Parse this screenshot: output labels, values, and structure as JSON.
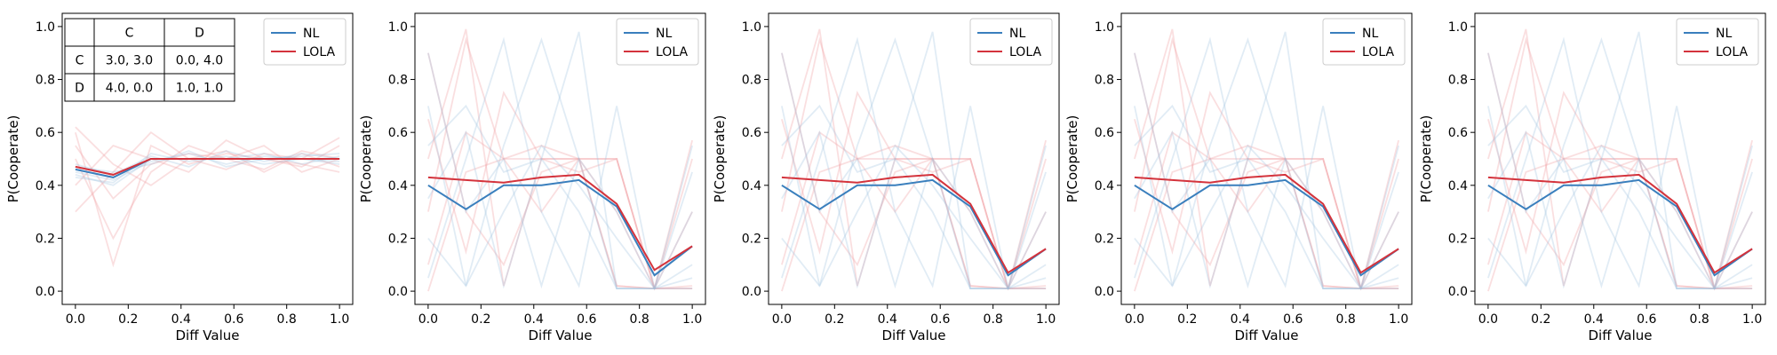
{
  "colors": {
    "nl": "#3a7fbd",
    "lola": "#d4333c",
    "nl_faint": "#9cc0de",
    "lola_faint": "#f2a3a6"
  },
  "chart_data": [
    {
      "type": "line",
      "xlabel": "Diff Value",
      "ylabel": "P(Cooperate)",
      "xlim": [
        -0.05,
        1.05
      ],
      "ylim": [
        -0.05,
        1.05
      ],
      "xticks": [
        "0.0",
        "0.2",
        "0.4",
        "0.6",
        "0.8",
        "1.0"
      ],
      "yticks": [
        "0.0",
        "0.2",
        "0.4",
        "0.6",
        "0.8",
        "1.0"
      ],
      "legend": {
        "placement": "top-right",
        "entries": [
          "NL",
          "LOLA"
        ]
      },
      "x": [
        0.0,
        0.143,
        0.286,
        0.429,
        0.571,
        0.714,
        0.857,
        1.0
      ],
      "series": [
        {
          "name": "NL",
          "values": [
            0.46,
            0.43,
            0.5,
            0.5,
            0.5,
            0.5,
            0.5,
            0.5
          ]
        },
        {
          "name": "LOLA",
          "values": [
            0.47,
            0.44,
            0.5,
            0.5,
            0.5,
            0.5,
            0.5,
            0.5
          ]
        }
      ],
      "faint_runs": {
        "nl": [
          [
            0.45,
            0.42,
            0.49,
            0.52,
            0.48,
            0.51,
            0.5,
            0.49
          ],
          [
            0.48,
            0.44,
            0.51,
            0.47,
            0.53,
            0.49,
            0.52,
            0.5
          ],
          [
            0.44,
            0.4,
            0.5,
            0.5,
            0.5,
            0.52,
            0.48,
            0.51
          ],
          [
            0.47,
            0.45,
            0.48,
            0.53,
            0.47,
            0.5,
            0.51,
            0.52
          ],
          [
            0.43,
            0.41,
            0.52,
            0.49,
            0.51,
            0.48,
            0.5,
            0.48
          ]
        ],
        "lola": [
          [
            0.6,
            0.1,
            0.55,
            0.48,
            0.52,
            0.5,
            0.47,
            0.55
          ],
          [
            0.5,
            0.2,
            0.45,
            0.55,
            0.5,
            0.46,
            0.53,
            0.5
          ],
          [
            0.4,
            0.55,
            0.5,
            0.45,
            0.57,
            0.5,
            0.48,
            0.45
          ],
          [
            0.3,
            0.45,
            0.6,
            0.5,
            0.46,
            0.52,
            0.5,
            0.58
          ],
          [
            0.55,
            0.35,
            0.48,
            0.52,
            0.5,
            0.55,
            0.45,
            0.5
          ],
          [
            0.62,
            0.48,
            0.4,
            0.5,
            0.53,
            0.45,
            0.52,
            0.47
          ]
        ]
      },
      "payoff_table": {
        "header": [
          "",
          "C",
          "D"
        ],
        "rows": [
          [
            "C",
            "3.0, 3.0",
            "0.0, 4.0"
          ],
          [
            "D",
            "4.0, 0.0",
            "1.0, 1.0"
          ]
        ]
      }
    },
    {
      "type": "line",
      "xlabel": "Diff Value",
      "ylabel": "P(Cooperate)",
      "xlim": [
        -0.05,
        1.05
      ],
      "ylim": [
        -0.05,
        1.05
      ],
      "xticks": [
        "0.0",
        "0.2",
        "0.4",
        "0.6",
        "0.8",
        "1.0"
      ],
      "yticks": [
        "0.0",
        "0.2",
        "0.4",
        "0.6",
        "0.8",
        "1.0"
      ],
      "legend": {
        "placement": "top-right",
        "entries": [
          "NL",
          "LOLA"
        ]
      },
      "x": [
        0.0,
        0.143,
        0.286,
        0.429,
        0.571,
        0.714,
        0.857,
        1.0
      ],
      "series": [
        {
          "name": "NL",
          "values": [
            0.4,
            0.31,
            0.4,
            0.4,
            0.42,
            0.32,
            0.06,
            0.17
          ]
        },
        {
          "name": "LOLA",
          "values": [
            0.43,
            0.42,
            0.41,
            0.43,
            0.44,
            0.33,
            0.08,
            0.17
          ]
        }
      ],
      "faint_runs": {
        "nl": [
          [
            0.7,
            0.02,
            0.55,
            0.95,
            0.5,
            0.01,
            0.01,
            0.01
          ],
          [
            0.35,
            0.6,
            0.02,
            0.5,
            0.98,
            0.01,
            0.01,
            0.45
          ],
          [
            0.05,
            0.5,
            0.95,
            0.3,
            0.02,
            0.7,
            0.01,
            0.1
          ],
          [
            0.9,
            0.3,
            0.5,
            0.02,
            0.5,
            0.3,
            0.01,
            0.3
          ],
          [
            0.2,
            0.02,
            0.3,
            0.55,
            0.4,
            0.2,
            0.01,
            0.05
          ],
          [
            0.55,
            0.7,
            0.45,
            0.5,
            0.3,
            0.01,
            0.01,
            0.55
          ]
        ],
        "lola": [
          [
            0.5,
            0.99,
            0.02,
            0.5,
            0.5,
            0.5,
            0.01,
            0.01
          ],
          [
            0.1,
            0.6,
            0.5,
            0.5,
            0.5,
            0.02,
            0.01,
            0.5
          ],
          [
            0.9,
            0.3,
            0.1,
            0.45,
            0.5,
            0.5,
            0.01,
            0.01
          ],
          [
            0.3,
            0.95,
            0.5,
            0.3,
            0.5,
            0.02,
            0.01,
            0.3
          ],
          [
            0.65,
            0.15,
            0.75,
            0.5,
            0.45,
            0.5,
            0.01,
            0.02
          ],
          [
            0.0,
            0.45,
            0.5,
            0.55,
            0.5,
            0.3,
            0.01,
            0.57
          ]
        ]
      }
    },
    {
      "type": "line",
      "xlabel": "Diff Value",
      "ylabel": "P(Cooperate)",
      "xlim": [
        -0.05,
        1.05
      ],
      "ylim": [
        -0.05,
        1.05
      ],
      "xticks": [
        "0.0",
        "0.2",
        "0.4",
        "0.6",
        "0.8",
        "1.0"
      ],
      "yticks": [
        "0.0",
        "0.2",
        "0.4",
        "0.6",
        "0.8",
        "1.0"
      ],
      "legend": {
        "placement": "top-right",
        "entries": [
          "NL",
          "LOLA"
        ]
      },
      "x": [
        0.0,
        0.143,
        0.286,
        0.429,
        0.571,
        0.714,
        0.857,
        1.0
      ],
      "series": [
        {
          "name": "NL",
          "values": [
            0.4,
            0.31,
            0.4,
            0.4,
            0.42,
            0.32,
            0.06,
            0.16
          ]
        },
        {
          "name": "LOLA",
          "values": [
            0.43,
            0.42,
            0.41,
            0.43,
            0.44,
            0.33,
            0.07,
            0.16
          ]
        }
      ],
      "faint_runs": {
        "nl": [
          [
            0.7,
            0.02,
            0.55,
            0.95,
            0.5,
            0.01,
            0.01,
            0.01
          ],
          [
            0.35,
            0.6,
            0.02,
            0.5,
            0.98,
            0.01,
            0.01,
            0.45
          ],
          [
            0.05,
            0.5,
            0.95,
            0.3,
            0.02,
            0.7,
            0.01,
            0.1
          ],
          [
            0.9,
            0.3,
            0.5,
            0.02,
            0.5,
            0.3,
            0.01,
            0.3
          ],
          [
            0.2,
            0.02,
            0.3,
            0.55,
            0.4,
            0.2,
            0.01,
            0.05
          ],
          [
            0.55,
            0.7,
            0.45,
            0.5,
            0.3,
            0.01,
            0.01,
            0.55
          ]
        ],
        "lola": [
          [
            0.5,
            0.99,
            0.02,
            0.5,
            0.5,
            0.5,
            0.01,
            0.01
          ],
          [
            0.1,
            0.6,
            0.5,
            0.5,
            0.5,
            0.02,
            0.01,
            0.5
          ],
          [
            0.9,
            0.3,
            0.1,
            0.45,
            0.5,
            0.5,
            0.01,
            0.01
          ],
          [
            0.3,
            0.95,
            0.5,
            0.3,
            0.5,
            0.02,
            0.01,
            0.3
          ],
          [
            0.65,
            0.15,
            0.75,
            0.5,
            0.45,
            0.5,
            0.01,
            0.02
          ],
          [
            0.0,
            0.45,
            0.5,
            0.55,
            0.5,
            0.3,
            0.01,
            0.57
          ]
        ]
      }
    },
    {
      "type": "line",
      "xlabel": "Diff Value",
      "ylabel": "P(Cooperate)",
      "xlim": [
        -0.05,
        1.05
      ],
      "ylim": [
        -0.05,
        1.05
      ],
      "xticks": [
        "0.0",
        "0.2",
        "0.4",
        "0.6",
        "0.8",
        "1.0"
      ],
      "yticks": [
        "0.0",
        "0.2",
        "0.4",
        "0.6",
        "0.8",
        "1.0"
      ],
      "legend": {
        "placement": "top-right",
        "entries": [
          "NL",
          "LOLA"
        ]
      },
      "x": [
        0.0,
        0.143,
        0.286,
        0.429,
        0.571,
        0.714,
        0.857,
        1.0
      ],
      "series": [
        {
          "name": "NL",
          "values": [
            0.4,
            0.31,
            0.4,
            0.4,
            0.42,
            0.32,
            0.06,
            0.16
          ]
        },
        {
          "name": "LOLA",
          "values": [
            0.43,
            0.42,
            0.41,
            0.43,
            0.44,
            0.33,
            0.07,
            0.16
          ]
        }
      ],
      "faint_runs": {
        "nl": [
          [
            0.7,
            0.02,
            0.55,
            0.95,
            0.5,
            0.01,
            0.01,
            0.01
          ],
          [
            0.35,
            0.6,
            0.02,
            0.5,
            0.98,
            0.01,
            0.01,
            0.45
          ],
          [
            0.05,
            0.5,
            0.95,
            0.3,
            0.02,
            0.7,
            0.01,
            0.1
          ],
          [
            0.9,
            0.3,
            0.5,
            0.02,
            0.5,
            0.3,
            0.01,
            0.3
          ],
          [
            0.2,
            0.02,
            0.3,
            0.55,
            0.4,
            0.2,
            0.01,
            0.05
          ],
          [
            0.55,
            0.7,
            0.45,
            0.5,
            0.3,
            0.01,
            0.01,
            0.55
          ]
        ],
        "lola": [
          [
            0.5,
            0.99,
            0.02,
            0.5,
            0.5,
            0.5,
            0.01,
            0.01
          ],
          [
            0.1,
            0.6,
            0.5,
            0.5,
            0.5,
            0.02,
            0.01,
            0.5
          ],
          [
            0.9,
            0.3,
            0.1,
            0.45,
            0.5,
            0.5,
            0.01,
            0.01
          ],
          [
            0.3,
            0.95,
            0.5,
            0.3,
            0.5,
            0.02,
            0.01,
            0.3
          ],
          [
            0.65,
            0.15,
            0.75,
            0.5,
            0.45,
            0.5,
            0.01,
            0.02
          ],
          [
            0.0,
            0.45,
            0.5,
            0.55,
            0.5,
            0.3,
            0.01,
            0.57
          ]
        ]
      }
    },
    {
      "type": "line",
      "xlabel": "Diff Value",
      "ylabel": "P(Cooperate)",
      "xlim": [
        -0.05,
        1.05
      ],
      "ylim": [
        -0.05,
        1.05
      ],
      "xticks": [
        "0.0",
        "0.2",
        "0.4",
        "0.6",
        "0.8",
        "1.0"
      ],
      "yticks": [
        "0.0",
        "0.2",
        "0.4",
        "0.6",
        "0.8",
        "1.0"
      ],
      "legend": {
        "placement": "top-right",
        "entries": [
          "NL",
          "LOLA"
        ]
      },
      "x": [
        0.0,
        0.143,
        0.286,
        0.429,
        0.571,
        0.714,
        0.857,
        1.0
      ],
      "series": [
        {
          "name": "NL",
          "values": [
            0.4,
            0.31,
            0.4,
            0.4,
            0.42,
            0.32,
            0.06,
            0.16
          ]
        },
        {
          "name": "LOLA",
          "values": [
            0.43,
            0.42,
            0.41,
            0.43,
            0.44,
            0.33,
            0.07,
            0.16
          ]
        }
      ],
      "faint_runs": {
        "nl": [
          [
            0.7,
            0.02,
            0.55,
            0.95,
            0.5,
            0.01,
            0.01,
            0.01
          ],
          [
            0.35,
            0.6,
            0.02,
            0.5,
            0.98,
            0.01,
            0.01,
            0.45
          ],
          [
            0.05,
            0.5,
            0.95,
            0.3,
            0.02,
            0.7,
            0.01,
            0.1
          ],
          [
            0.9,
            0.3,
            0.5,
            0.02,
            0.5,
            0.3,
            0.01,
            0.3
          ],
          [
            0.2,
            0.02,
            0.3,
            0.55,
            0.4,
            0.2,
            0.01,
            0.05
          ],
          [
            0.55,
            0.7,
            0.45,
            0.5,
            0.3,
            0.01,
            0.01,
            0.55
          ]
        ],
        "lola": [
          [
            0.5,
            0.99,
            0.02,
            0.5,
            0.5,
            0.5,
            0.01,
            0.01
          ],
          [
            0.1,
            0.6,
            0.5,
            0.5,
            0.5,
            0.02,
            0.01,
            0.5
          ],
          [
            0.9,
            0.3,
            0.1,
            0.45,
            0.5,
            0.5,
            0.01,
            0.01
          ],
          [
            0.3,
            0.95,
            0.5,
            0.3,
            0.5,
            0.02,
            0.01,
            0.3
          ],
          [
            0.65,
            0.15,
            0.75,
            0.5,
            0.45,
            0.5,
            0.01,
            0.02
          ],
          [
            0.0,
            0.45,
            0.5,
            0.55,
            0.5,
            0.3,
            0.01,
            0.57
          ]
        ]
      }
    }
  ]
}
